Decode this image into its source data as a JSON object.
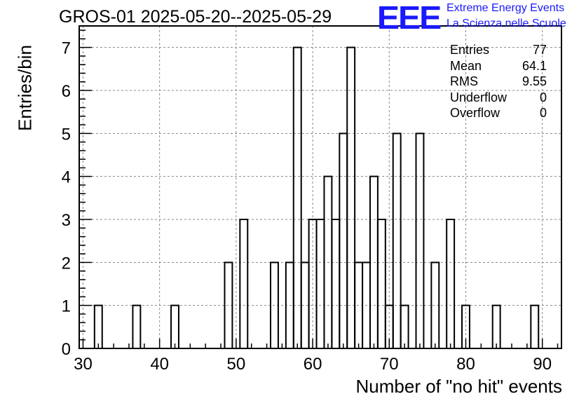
{
  "header": {
    "title": "GROS-01 2025-05-20--2025-05-29",
    "logo_text": "EEE",
    "logo_line1": "Extreme Energy Events",
    "logo_line2": "La Scienza nelle Scuole",
    "logo_color": "#1a1aff"
  },
  "stats": {
    "rows": [
      {
        "label": "Entries",
        "value": "77"
      },
      {
        "label": "Mean",
        "value": "64.1"
      },
      {
        "label": "RMS",
        "value": "9.55"
      },
      {
        "label": "Underflow",
        "value": "0"
      },
      {
        "label": "Overflow",
        "value": "0"
      }
    ]
  },
  "chart_data": {
    "type": "bar",
    "subtype": "histogram",
    "title": "GROS-01 2025-05-20--2025-05-29",
    "xlabel": "Number of \"no hit\" events",
    "ylabel": "Entries/bin",
    "xlim": [
      29.5,
      92.5
    ],
    "ylim": [
      0,
      7.5
    ],
    "bin_width": 1,
    "x_ticks": [
      30,
      40,
      50,
      60,
      70,
      80,
      90
    ],
    "y_ticks": [
      0,
      1,
      2,
      3,
      4,
      5,
      6,
      7
    ],
    "grid": true,
    "bins": [
      {
        "x": 32,
        "count": 1
      },
      {
        "x": 37,
        "count": 1
      },
      {
        "x": 42,
        "count": 1
      },
      {
        "x": 49,
        "count": 2
      },
      {
        "x": 51,
        "count": 3
      },
      {
        "x": 55,
        "count": 2
      },
      {
        "x": 57,
        "count": 2
      },
      {
        "x": 58,
        "count": 7
      },
      {
        "x": 59,
        "count": 2
      },
      {
        "x": 60,
        "count": 3
      },
      {
        "x": 61,
        "count": 3
      },
      {
        "x": 62,
        "count": 4
      },
      {
        "x": 63,
        "count": 3
      },
      {
        "x": 64,
        "count": 5
      },
      {
        "x": 65,
        "count": 7
      },
      {
        "x": 66,
        "count": 2
      },
      {
        "x": 67,
        "count": 2
      },
      {
        "x": 68,
        "count": 4
      },
      {
        "x": 69,
        "count": 3
      },
      {
        "x": 70,
        "count": 1
      },
      {
        "x": 71,
        "count": 5
      },
      {
        "x": 72,
        "count": 1
      },
      {
        "x": 74,
        "count": 5
      },
      {
        "x": 76,
        "count": 2
      },
      {
        "x": 78,
        "count": 3
      },
      {
        "x": 80,
        "count": 1
      },
      {
        "x": 84,
        "count": 1
      },
      {
        "x": 89,
        "count": 1
      }
    ]
  }
}
